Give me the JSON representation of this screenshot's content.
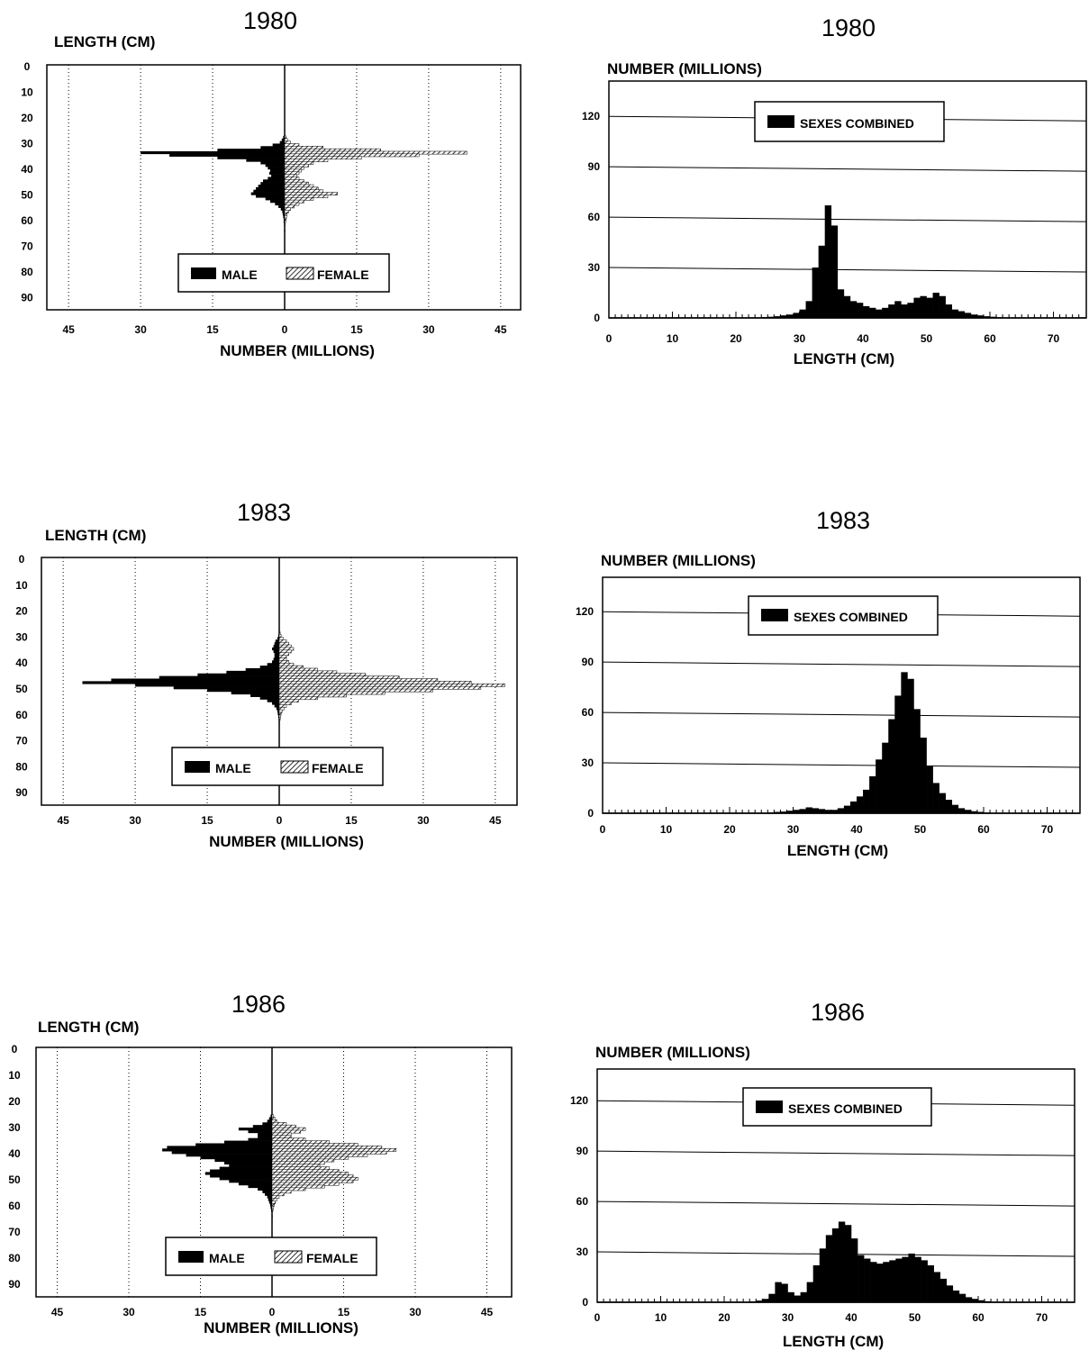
{
  "legend": {
    "male": "MALE",
    "female": "FEMALE",
    "combined": "SEXES COMBINED"
  },
  "chart_data": [
    {
      "type": "bar",
      "orientation": "horizontal-pyramid",
      "title": "1980",
      "ylabel": "LENGTH (CM)",
      "xlabel": "NUMBER (MILLIONS)",
      "y_ticks": [
        "0",
        "10",
        "20",
        "30",
        "40",
        "50",
        "60",
        "70",
        "80",
        "90"
      ],
      "x_ticks": [
        "45",
        "30",
        "15",
        "0",
        "15",
        "30",
        "45"
      ],
      "xlim": [
        -48,
        48
      ],
      "ylim": [
        0,
        95
      ],
      "grid": "vertical-dotted",
      "legend_position": "bottom-center",
      "length_bins": [
        27,
        28,
        29,
        30,
        31,
        32,
        33,
        34,
        35,
        36,
        37,
        38,
        39,
        40,
        41,
        42,
        43,
        44,
        45,
        46,
        47,
        48,
        49,
        50,
        51,
        52,
        53,
        54,
        55,
        56,
        57,
        58,
        59,
        60,
        61,
        62,
        63,
        64,
        65
      ],
      "series": [
        {
          "name": "MALE",
          "values": [
            0.3,
            0.6,
            1.0,
            2.5,
            5,
            14,
            30,
            24,
            14,
            8,
            5,
            4,
            3.5,
            3,
            3.2,
            2.8,
            3.5,
            4.5,
            5,
            5.5,
            6,
            6.5,
            7,
            6,
            4,
            3,
            2,
            1.3,
            0.8,
            0.5,
            0.4,
            0.3,
            0.2,
            0.2,
            0.1,
            0.1,
            0.1,
            0.05,
            0.05
          ]
        },
        {
          "name": "FEMALE",
          "values": [
            0.3,
            0.6,
            1.2,
            3,
            8,
            20,
            38,
            28,
            16,
            9,
            6,
            5,
            4,
            3.5,
            3,
            2.5,
            3,
            4,
            5,
            6,
            7,
            8,
            11,
            9,
            6,
            4,
            3,
            2,
            1.2,
            0.8,
            0.5,
            0.4,
            0.3,
            0.2,
            0.1,
            0.1,
            0.1,
            0.05,
            0.05
          ]
        }
      ]
    },
    {
      "type": "bar",
      "title": "1980",
      "ylabel": "NUMBER (MILLIONS)",
      "xlabel": "LENGTH (CM)",
      "x_ticks": [
        "0",
        "10",
        "20",
        "30",
        "40",
        "50",
        "60",
        "70"
      ],
      "y_ticks": [
        "0",
        "30",
        "60",
        "90",
        "120"
      ],
      "xlim": [
        0,
        75
      ],
      "ylim": [
        0,
        140
      ],
      "grid": "horizontal",
      "legend_position": "top-center",
      "series": [
        {
          "name": "SEXES COMBINED",
          "x": [
            24,
            25,
            26,
            27,
            28,
            29,
            30,
            31,
            32,
            33,
            34,
            35,
            36,
            37,
            38,
            39,
            40,
            41,
            42,
            43,
            44,
            45,
            46,
            47,
            48,
            49,
            50,
            51,
            52,
            53,
            54,
            55,
            56,
            57,
            58,
            59,
            60,
            61,
            62
          ],
          "values": [
            0.5,
            0.7,
            1,
            1.5,
            2,
            3,
            5,
            10,
            30,
            43,
            67,
            55,
            17,
            13,
            10,
            9,
            7,
            6,
            5,
            6,
            8,
            10,
            8,
            9,
            12,
            13,
            12,
            15,
            13,
            8,
            5,
            4,
            3,
            2,
            1.5,
            1,
            0.7,
            0.4,
            0.2
          ]
        }
      ]
    },
    {
      "type": "bar",
      "orientation": "horizontal-pyramid",
      "title": "1983",
      "ylabel": "LENGTH (CM)",
      "xlabel": "NUMBER (MILLIONS)",
      "y_ticks": [
        "0",
        "10",
        "20",
        "30",
        "40",
        "50",
        "60",
        "70",
        "80",
        "90"
      ],
      "x_ticks": [
        "45",
        "30",
        "15",
        "0",
        "15",
        "30",
        "45"
      ],
      "xlim": [
        -48,
        48
      ],
      "ylim": [
        0,
        95
      ],
      "grid": "vertical-dotted",
      "legend_position": "bottom-center",
      "length_bins": [
        28,
        29,
        30,
        31,
        32,
        33,
        34,
        35,
        36,
        37,
        38,
        39,
        40,
        41,
        42,
        43,
        44,
        45,
        46,
        47,
        48,
        49,
        50,
        51,
        52,
        53,
        54,
        55,
        56,
        57,
        58,
        59,
        60,
        61,
        62,
        63,
        64
      ],
      "series": [
        {
          "name": "MALE",
          "values": [
            0.1,
            0.2,
            0.4,
            0.8,
            1,
            1.2,
            1.5,
            1.2,
            1.0,
            1.0,
            1.2,
            1.5,
            2.5,
            4,
            7,
            11,
            17,
            25,
            35,
            41,
            30,
            22,
            15,
            10,
            6,
            4,
            2.5,
            1.5,
            1,
            0.6,
            0.4,
            0.3,
            0.2,
            0.1,
            0.1,
            0.05,
            0.05
          ]
        },
        {
          "name": "FEMALE",
          "values": [
            0.2,
            0.4,
            0.8,
            1.5,
            2,
            2.5,
            3,
            2.5,
            2,
            1.5,
            1.5,
            2,
            3,
            5,
            8,
            12,
            18,
            25,
            33,
            40,
            47,
            42,
            32,
            22,
            14,
            8,
            4,
            2.5,
            1.5,
            1,
            0.6,
            0.4,
            0.3,
            0.2,
            0.1,
            0.05,
            0.05
          ]
        }
      ]
    },
    {
      "type": "bar",
      "title": "1983",
      "ylabel": "NUMBER (MILLIONS)",
      "xlabel": "LENGTH (CM)",
      "x_ticks": [
        "0",
        "10",
        "20",
        "30",
        "40",
        "50",
        "60",
        "70"
      ],
      "y_ticks": [
        "0",
        "30",
        "60",
        "90",
        "120"
      ],
      "xlim": [
        0,
        75
      ],
      "ylim": [
        0,
        140
      ],
      "grid": "horizontal",
      "legend_position": "top-center",
      "series": [
        {
          "name": "SEXES COMBINED",
          "x": [
            25,
            26,
            27,
            28,
            29,
            30,
            31,
            32,
            33,
            34,
            35,
            36,
            37,
            38,
            39,
            40,
            41,
            42,
            43,
            44,
            45,
            46,
            47,
            48,
            49,
            50,
            51,
            52,
            53,
            54,
            55,
            56,
            57,
            58,
            59,
            60,
            61
          ],
          "values": [
            0.3,
            0.5,
            0.8,
            1,
            1.5,
            2,
            2.5,
            3.5,
            3,
            2.5,
            2,
            2,
            3,
            4.5,
            7,
            10,
            14,
            22,
            32,
            42,
            56,
            70,
            84,
            80,
            62,
            45,
            28,
            18,
            12,
            8,
            5,
            3,
            2,
            1.2,
            0.8,
            0.4,
            0.2
          ]
        }
      ]
    },
    {
      "type": "bar",
      "orientation": "horizontal-pyramid",
      "title": "1986",
      "ylabel": "LENGTH (CM)",
      "xlabel": "NUMBER (MILLIONS)",
      "y_ticks": [
        "0",
        "10",
        "20",
        "30",
        "40",
        "50",
        "60",
        "70",
        "80",
        "90"
      ],
      "x_ticks": [
        "45",
        "30",
        "15",
        "0",
        "15",
        "30",
        "45"
      ],
      "xlim": [
        -48,
        48
      ],
      "ylim": [
        0,
        95
      ],
      "grid": "vertical-dotted",
      "legend_position": "bottom-center",
      "length_bins": [
        25,
        26,
        27,
        28,
        29,
        30,
        31,
        32,
        33,
        34,
        35,
        36,
        37,
        38,
        39,
        40,
        41,
        42,
        43,
        44,
        45,
        46,
        47,
        48,
        49,
        50,
        51,
        52,
        53,
        54,
        55,
        56,
        57,
        58,
        59,
        60,
        61,
        62,
        63,
        64,
        65
      ],
      "series": [
        {
          "name": "MALE",
          "values": [
            0.3,
            0.6,
            1,
            2,
            4,
            7,
            5,
            3,
            3,
            5,
            10,
            16,
            22,
            23,
            21,
            18,
            15,
            12,
            10,
            9,
            11,
            13,
            14,
            13,
            11,
            9,
            7,
            5,
            3,
            2,
            1.5,
            1,
            0.8,
            0.6,
            0.4,
            0.3,
            0.2,
            0.1,
            0.1,
            0.05,
            0.05
          ]
        },
        {
          "name": "FEMALE",
          "values": [
            0.3,
            0.6,
            1,
            3,
            5,
            7,
            6,
            4,
            4,
            7,
            12,
            18,
            23,
            26,
            24,
            20,
            16,
            13,
            11,
            10,
            12,
            14,
            16,
            17,
            18,
            17,
            14,
            11,
            7,
            4,
            2.5,
            1.5,
            1,
            0.7,
            0.5,
            0.3,
            0.2,
            0.1,
            0.1,
            0.05,
            0.05
          ]
        }
      ]
    },
    {
      "type": "bar",
      "title": "1986",
      "ylabel": "NUMBER (MILLIONS)",
      "xlabel": "LENGTH (CM)",
      "x_ticks": [
        "0",
        "10",
        "20",
        "30",
        "40",
        "50",
        "60",
        "70"
      ],
      "y_ticks": [
        "0",
        "30",
        "60",
        "90",
        "120"
      ],
      "xlim": [
        0,
        75
      ],
      "ylim": [
        0,
        140
      ],
      "grid": "horizontal",
      "legend_position": "top-center",
      "series": [
        {
          "name": "SEXES COMBINED",
          "x": [
            24,
            25,
            26,
            27,
            28,
            29,
            30,
            31,
            32,
            33,
            34,
            35,
            36,
            37,
            38,
            39,
            40,
            41,
            42,
            43,
            44,
            45,
            46,
            47,
            48,
            49,
            50,
            51,
            52,
            53,
            54,
            55,
            56,
            57,
            58,
            59,
            60,
            61,
            62
          ],
          "values": [
            0.5,
            1,
            2,
            5,
            12,
            11,
            6,
            4,
            6,
            12,
            22,
            32,
            40,
            44,
            48,
            46,
            38,
            28,
            26,
            24,
            23,
            24,
            25,
            26,
            27,
            29,
            27,
            25,
            22,
            18,
            14,
            10,
            7,
            5,
            3,
            2,
            1.2,
            0.6,
            0.3
          ]
        }
      ]
    }
  ]
}
